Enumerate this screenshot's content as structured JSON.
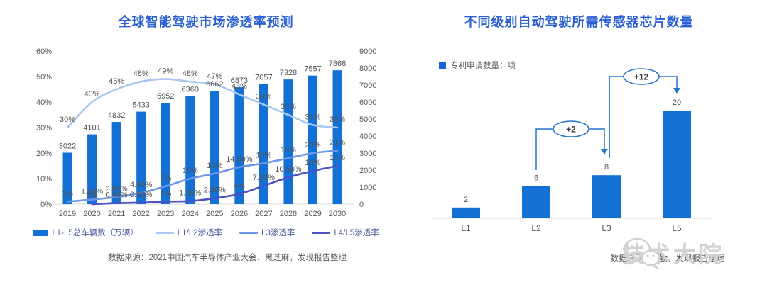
{
  "left_chart": {
    "title": "全球智能驾驶市场渗透率预测",
    "source": "数据来源：2021中国汽车半导体产业大会、黑芝麻，发现报告整理",
    "legend": [
      {
        "label": "L1-L5总车辆数（万辆）",
        "type": "bar",
        "color": "#1371d6"
      },
      {
        "label": "L1/L2渗透率",
        "type": "line",
        "color": "#a9c7f1"
      },
      {
        "label": "L3渗透率",
        "type": "line",
        "color": "#6d95e8"
      },
      {
        "label": "L4/L5渗透率",
        "type": "line",
        "color": "#4b51c3"
      }
    ]
  },
  "right_chart": {
    "title": "不同级别自动驾驶所需传感器芯片数量",
    "legend_label": "专利申请数量：项",
    "legend_color": "#1565d8",
    "source": "数据来源：德勤，发现报告整理",
    "annotation_color": "#2273cf"
  },
  "watermark": {
    "text": "技术大院",
    "icon": "wechat-logo"
  },
  "chart_data": [
    {
      "type": "bar",
      "title": "全球智能驾驶市场渗透率预测",
      "categories": [
        "2019",
        "2020",
        "2021",
        "2022",
        "2023",
        "2024",
        "2025",
        "2026",
        "2027",
        "2028",
        "2029",
        "2030"
      ],
      "series": [
        {
          "name": "L1-L5总车辆数（万辆）",
          "kind": "bar",
          "axis": "right",
          "color": "#1371d6",
          "values": [
            3022,
            4101,
            4832,
            5433,
            5952,
            6360,
            6662,
            6873,
            7057,
            7328,
            7557,
            7868
          ]
        },
        {
          "name": "L1/L2渗透率",
          "kind": "line",
          "axis": "left",
          "color": "#a9c7f1",
          "values": [
            30,
            40,
            45,
            48,
            49,
            48,
            47,
            43,
            39,
            35,
            31,
            30
          ],
          "labels": [
            "30%",
            "40%",
            "45%",
            "48%",
            "49%",
            "48%",
            "47%",
            "43%",
            "39%",
            "35%",
            "31%",
            "30%"
          ]
        },
        {
          "name": "L3渗透率",
          "kind": "line",
          "axis": "left",
          "color": "#6d95e8",
          "values": [
            1,
            1.8,
            2.8,
            4.4,
            7,
            10,
            12,
            14.5,
            16,
            18,
            20,
            21
          ],
          "labels": [
            "1%",
            "1.80%",
            "2.80%",
            "4.40%",
            "7%",
            "10%",
            "12%",
            "14.50%",
            "16%",
            "18%",
            "20%",
            "21%"
          ]
        },
        {
          "name": "L4/L5渗透率",
          "kind": "line",
          "axis": "left",
          "color": "#4b51c3",
          "values": [
            null,
            0,
            0.4,
            0.6,
            1,
            1.2,
            2.3,
            4,
            7.2,
            10.5,
            13,
            15
          ],
          "labels": [
            "",
            "0%",
            "0.40%",
            "0.60%",
            "1%",
            "1.20%",
            "2.30%",
            "4%",
            "7.20%",
            "10.50%",
            "13%",
            "15%"
          ]
        }
      ],
      "left_axis": {
        "label": "",
        "ticks": [
          "0%",
          "10%",
          "20%",
          "30%",
          "40%",
          "50%",
          "60%"
        ],
        "min": 0,
        "max": 60
      },
      "right_axis": {
        "label": "",
        "ticks": [
          "0",
          "1000",
          "2000",
          "3000",
          "4000",
          "5000",
          "6000",
          "7000",
          "8000",
          "9000"
        ],
        "min": 0,
        "max": 9000
      },
      "grid": false,
      "legend_position": "bottom"
    },
    {
      "type": "bar",
      "title": "不同级别自动驾驶所需传感器芯片数量",
      "categories": [
        "L1",
        "L2",
        "L3",
        "L5"
      ],
      "values": [
        2,
        6,
        8,
        20
      ],
      "value_labels": [
        "2",
        "6",
        "8",
        "20"
      ],
      "ylim": [
        0,
        25
      ],
      "grid": false,
      "annotations": [
        {
          "label": "+2",
          "from": "L2",
          "to": "L3"
        },
        {
          "label": "+12",
          "from": "L3",
          "to": "L5"
        }
      ]
    }
  ]
}
